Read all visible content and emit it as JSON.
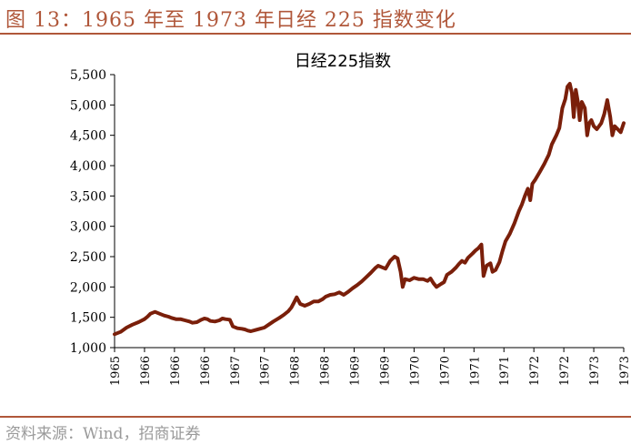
{
  "figure": {
    "title": "图 13：1965 年至 1973 年日经 225 指数变化",
    "source": "资料来源：Wind，招商证券"
  },
  "chart_data": {
    "type": "line",
    "title": "日经225指数",
    "xlabel": "",
    "ylabel": "",
    "ylim": [
      1000,
      5500
    ],
    "yticks": [
      1000,
      1500,
      2000,
      2500,
      3000,
      3500,
      4000,
      4500,
      5000,
      5500
    ],
    "ytick_labels": [
      "1,000",
      "1,500",
      "2,000",
      "2,500",
      "3,000",
      "3,500",
      "4,000",
      "4,500",
      "5,000",
      "5,500"
    ],
    "xtick_labels": [
      "1965",
      "1966",
      "1966",
      "1966",
      "1967",
      "1967",
      "1968",
      "1968",
      "1969",
      "1969",
      "1970",
      "1970",
      "1971",
      "1971",
      "1972",
      "1972",
      "1973",
      "1973"
    ],
    "grid": false,
    "legend": "none",
    "line_color": "#7a1f0a",
    "series": [
      {
        "values": [
          [
            0,
            1220
          ],
          [
            0.2,
            1260
          ],
          [
            0.4,
            1330
          ],
          [
            0.6,
            1380
          ],
          [
            0.8,
            1420
          ],
          [
            1.0,
            1470
          ],
          [
            1.1,
            1510
          ],
          [
            1.2,
            1560
          ],
          [
            1.35,
            1590
          ],
          [
            1.5,
            1560
          ],
          [
            1.65,
            1530
          ],
          [
            1.8,
            1510
          ],
          [
            1.9,
            1490
          ],
          [
            2.05,
            1470
          ],
          [
            2.2,
            1470
          ],
          [
            2.35,
            1450
          ],
          [
            2.5,
            1430
          ],
          [
            2.6,
            1410
          ],
          [
            2.75,
            1420
          ],
          [
            2.9,
            1460
          ],
          [
            3.0,
            1480
          ],
          [
            3.1,
            1470
          ],
          [
            3.2,
            1440
          ],
          [
            3.35,
            1430
          ],
          [
            3.5,
            1450
          ],
          [
            3.6,
            1480
          ],
          [
            3.7,
            1470
          ],
          [
            3.85,
            1460
          ],
          [
            3.95,
            1350
          ],
          [
            4.1,
            1320
          ],
          [
            4.25,
            1310
          ],
          [
            4.35,
            1300
          ],
          [
            4.45,
            1280
          ],
          [
            4.55,
            1270
          ],
          [
            4.7,
            1290
          ],
          [
            4.85,
            1310
          ],
          [
            5.0,
            1330
          ],
          [
            5.15,
            1380
          ],
          [
            5.3,
            1430
          ],
          [
            5.5,
            1490
          ],
          [
            5.65,
            1540
          ],
          [
            5.8,
            1600
          ],
          [
            5.9,
            1660
          ],
          [
            6.0,
            1750
          ],
          [
            6.08,
            1830
          ],
          [
            6.2,
            1720
          ],
          [
            6.35,
            1690
          ],
          [
            6.5,
            1720
          ],
          [
            6.65,
            1760
          ],
          [
            6.8,
            1760
          ],
          [
            6.95,
            1800
          ],
          [
            7.05,
            1840
          ],
          [
            7.2,
            1870
          ],
          [
            7.35,
            1880
          ],
          [
            7.5,
            1910
          ],
          [
            7.65,
            1870
          ],
          [
            7.8,
            1920
          ],
          [
            7.95,
            1980
          ],
          [
            8.1,
            2030
          ],
          [
            8.25,
            2090
          ],
          [
            8.4,
            2160
          ],
          [
            8.55,
            2230
          ],
          [
            8.7,
            2310
          ],
          [
            8.8,
            2350
          ],
          [
            8.9,
            2330
          ],
          [
            9.05,
            2300
          ],
          [
            9.2,
            2430
          ],
          [
            9.35,
            2500
          ],
          [
            9.45,
            2470
          ],
          [
            9.55,
            2250
          ],
          [
            9.62,
            2000
          ],
          [
            9.7,
            2130
          ],
          [
            9.85,
            2110
          ],
          [
            10.0,
            2150
          ],
          [
            10.15,
            2130
          ],
          [
            10.3,
            2130
          ],
          [
            10.45,
            2100
          ],
          [
            10.55,
            2140
          ],
          [
            10.65,
            2060
          ],
          [
            10.75,
            2000
          ],
          [
            10.9,
            2050
          ],
          [
            11.0,
            2080
          ],
          [
            11.1,
            2200
          ],
          [
            11.25,
            2250
          ],
          [
            11.4,
            2320
          ],
          [
            11.5,
            2380
          ],
          [
            11.6,
            2430
          ],
          [
            11.7,
            2400
          ],
          [
            11.8,
            2480
          ],
          [
            11.95,
            2550
          ],
          [
            12.05,
            2600
          ],
          [
            12.15,
            2640
          ],
          [
            12.25,
            2700
          ],
          [
            12.32,
            2180
          ],
          [
            12.42,
            2350
          ],
          [
            12.55,
            2390
          ],
          [
            12.62,
            2250
          ],
          [
            12.72,
            2280
          ],
          [
            12.85,
            2410
          ],
          [
            12.95,
            2590
          ],
          [
            13.05,
            2750
          ],
          [
            13.2,
            2880
          ],
          [
            13.35,
            3050
          ],
          [
            13.5,
            3250
          ],
          [
            13.6,
            3360
          ],
          [
            13.7,
            3500
          ],
          [
            13.8,
            3620
          ],
          [
            13.88,
            3430
          ],
          [
            13.95,
            3700
          ],
          [
            14.05,
            3770
          ],
          [
            14.2,
            3900
          ],
          [
            14.35,
            4030
          ],
          [
            14.5,
            4180
          ],
          [
            14.6,
            4350
          ],
          [
            14.75,
            4500
          ],
          [
            14.85,
            4620
          ],
          [
            14.95,
            4950
          ],
          [
            15.05,
            5100
          ],
          [
            15.12,
            5300
          ],
          [
            15.2,
            5350
          ],
          [
            15.27,
            5200
          ],
          [
            15.33,
            4800
          ],
          [
            15.4,
            5250
          ],
          [
            15.47,
            5050
          ],
          [
            15.53,
            4750
          ],
          [
            15.6,
            5050
          ],
          [
            15.7,
            4950
          ],
          [
            15.78,
            4500
          ],
          [
            15.85,
            4700
          ],
          [
            15.92,
            4750
          ],
          [
            16.0,
            4650
          ],
          [
            16.1,
            4600
          ],
          [
            16.25,
            4700
          ],
          [
            16.35,
            4850
          ],
          [
            16.45,
            5080
          ],
          [
            16.55,
            4800
          ],
          [
            16.62,
            4500
          ],
          [
            16.7,
            4650
          ],
          [
            16.8,
            4600
          ],
          [
            16.9,
            4550
          ],
          [
            17.0,
            4700
          ]
        ]
      }
    ]
  }
}
